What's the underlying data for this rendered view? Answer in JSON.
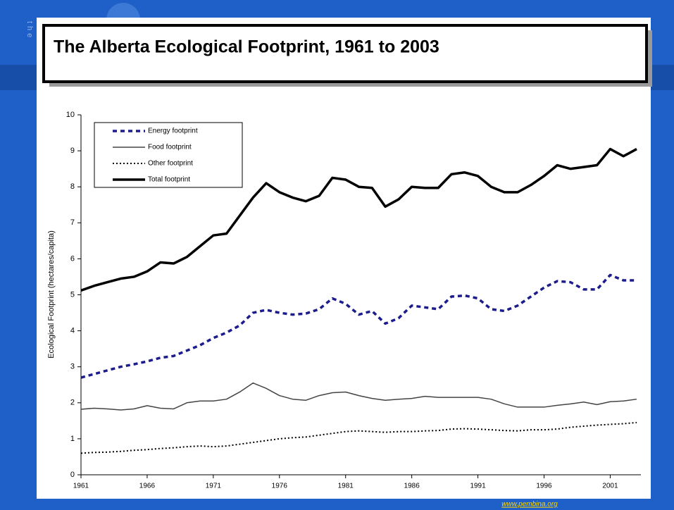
{
  "side_text": "the",
  "source": "www.pembina.org",
  "chart_data": {
    "type": "line",
    "title": "The Alberta Ecological Footprint, 1961 to 2003",
    "y_label": "Ecological Footprint (hectares/capita)",
    "x": [
      1961,
      1962,
      1963,
      1964,
      1965,
      1966,
      1967,
      1968,
      1969,
      1970,
      1971,
      1972,
      1973,
      1974,
      1975,
      1976,
      1977,
      1978,
      1979,
      1980,
      1981,
      1982,
      1983,
      1984,
      1985,
      1986,
      1987,
      1988,
      1989,
      1990,
      1991,
      1992,
      1993,
      1994,
      1995,
      1996,
      1997,
      1998,
      1999,
      2000,
      2001,
      2002,
      2003
    ],
    "xlim": [
      1961,
      2003
    ],
    "xticks": [
      1961,
      1966,
      1971,
      1976,
      1981,
      1986,
      1991,
      1996,
      2001
    ],
    "ylim": [
      0,
      10
    ],
    "yticks": [
      0,
      1,
      2,
      3,
      4,
      5,
      6,
      7,
      8,
      9,
      10
    ],
    "legend": "top-left",
    "series": [
      {
        "name": "Energy footprint",
        "color": "#1c1c8c",
        "dash": "6,5",
        "width": 3.5,
        "values": [
          2.7,
          2.8,
          2.9,
          3.0,
          3.07,
          3.15,
          3.25,
          3.3,
          3.45,
          3.6,
          3.8,
          3.95,
          4.15,
          4.5,
          4.58,
          4.5,
          4.45,
          4.48,
          4.6,
          4.9,
          4.75,
          4.45,
          4.55,
          4.2,
          4.35,
          4.7,
          4.65,
          4.6,
          4.95,
          4.98,
          4.9,
          4.6,
          4.55,
          4.7,
          4.95,
          5.2,
          5.38,
          5.35,
          5.15,
          5.15,
          5.55,
          5.4,
          5.4
        ]
      },
      {
        "name": "Food footprint",
        "color": "#444444",
        "dash": "none",
        "width": 1.5,
        "values": [
          1.82,
          1.85,
          1.83,
          1.8,
          1.83,
          1.92,
          1.85,
          1.83,
          2.0,
          2.05,
          2.05,
          2.1,
          2.3,
          2.55,
          2.4,
          2.2,
          2.1,
          2.07,
          2.2,
          2.28,
          2.3,
          2.2,
          2.12,
          2.07,
          2.1,
          2.12,
          2.18,
          2.15,
          2.15,
          2.15,
          2.15,
          2.1,
          1.97,
          1.88,
          1.88,
          1.88,
          1.93,
          1.97,
          2.02,
          1.95,
          2.03,
          2.05,
          2.1
        ]
      },
      {
        "name": "Other footprint",
        "color": "#000000",
        "dash": "2,3",
        "width": 2,
        "values": [
          0.6,
          0.62,
          0.63,
          0.65,
          0.68,
          0.7,
          0.73,
          0.75,
          0.78,
          0.8,
          0.78,
          0.8,
          0.85,
          0.9,
          0.95,
          1.0,
          1.03,
          1.05,
          1.1,
          1.15,
          1.2,
          1.22,
          1.2,
          1.18,
          1.2,
          1.2,
          1.22,
          1.23,
          1.27,
          1.28,
          1.27,
          1.25,
          1.23,
          1.22,
          1.25,
          1.25,
          1.27,
          1.32,
          1.35,
          1.38,
          1.4,
          1.42,
          1.45
        ]
      },
      {
        "name": "Total footprint",
        "color": "#000000",
        "dash": "none",
        "width": 3.5,
        "values": [
          5.12,
          5.25,
          5.35,
          5.45,
          5.5,
          5.65,
          5.9,
          5.87,
          6.05,
          6.35,
          6.65,
          6.7,
          7.2,
          7.7,
          8.1,
          7.85,
          7.7,
          7.6,
          7.75,
          8.25,
          8.2,
          8.0,
          7.97,
          7.45,
          7.65,
          8.0,
          7.97,
          7.97,
          8.35,
          8.4,
          8.3,
          8.0,
          7.85,
          7.85,
          8.05,
          8.3,
          8.6,
          8.5,
          8.55,
          8.6,
          9.05,
          8.85,
          9.05
        ]
      }
    ]
  }
}
